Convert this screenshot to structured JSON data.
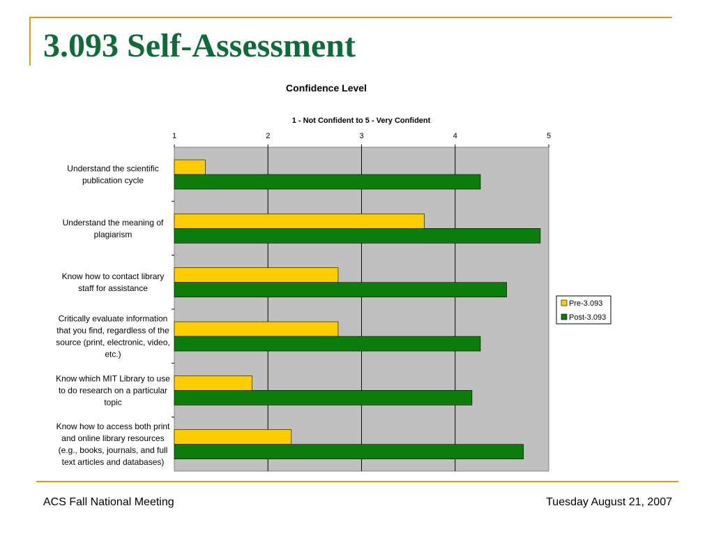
{
  "slide": {
    "title": "3.093 Self-Assessment",
    "footer_left": "ACS Fall National Meeting",
    "footer_right": "Tuesday August 21, 2007"
  },
  "colors": {
    "title": "#0e6b3a",
    "accent_line": "#d4a012",
    "plot_background": "#c0c0c0",
    "pre": "#ffcc00",
    "post": "#0a7d0a"
  },
  "chart_data": {
    "type": "bar",
    "orientation": "horizontal",
    "title": "Confidence Level",
    "xlabel": "1 - Not Confident to 5 - Very Confident",
    "ylabel": "",
    "xlim": [
      1,
      5
    ],
    "ticks": [
      "1",
      "2",
      "3",
      "4",
      "5"
    ],
    "grid": true,
    "legend_position": "right",
    "categories": [
      "Understand the scientific publication cycle",
      "Understand the meaning of plagiarism",
      "Know how to contact library staff for assistance",
      "Critically evaluate information that you find, regardless of the source (print, electronic, video, etc.)",
      "Know which MIT Library to use to do research on a particular topic",
      "Know how to access both print and online library resources (e.g., books, journals, and full text articles and databases)"
    ],
    "series": [
      {
        "name": "Pre-3.093",
        "values": [
          1.33,
          3.67,
          2.75,
          2.75,
          1.83,
          2.25
        ]
      },
      {
        "name": "Post-3.093",
        "values": [
          4.27,
          4.91,
          4.55,
          4.27,
          4.18,
          4.73
        ]
      }
    ]
  }
}
